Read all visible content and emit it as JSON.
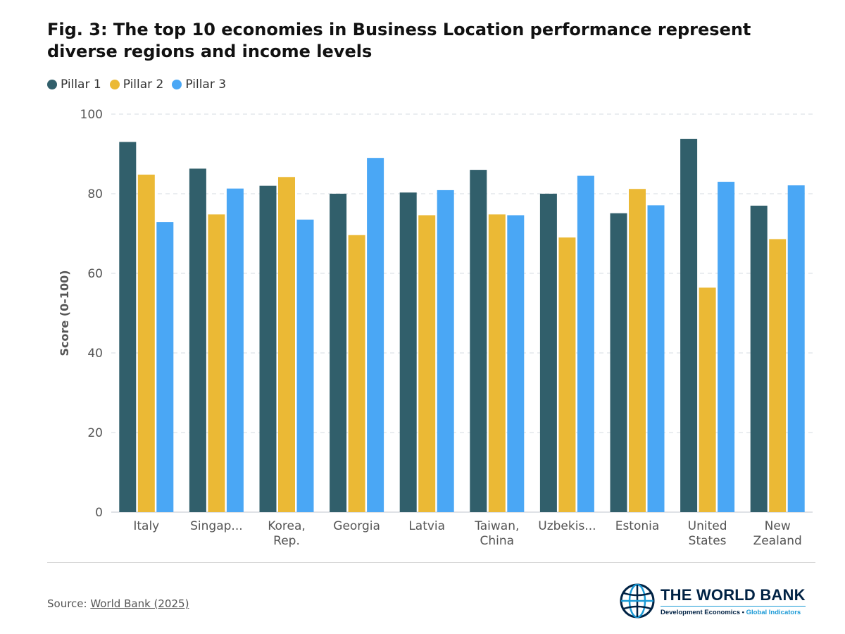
{
  "title": "Fig. 3: The top 10 economies in Business Location performance represent diverse regions and income levels",
  "chart_data": {
    "type": "bar",
    "title": "Fig. 3: The top 10 economies in Business Location performance represent diverse regions and income levels",
    "xlabel": "",
    "ylabel": "Score (0-100)",
    "ylim": [
      0,
      100
    ],
    "yticks": [
      0,
      20,
      40,
      60,
      80,
      100
    ],
    "grid": true,
    "legend_position": "top-left",
    "categories": [
      [
        "Italy"
      ],
      [
        "Singap..."
      ],
      [
        "Korea,",
        "Rep."
      ],
      [
        "Georgia"
      ],
      [
        "Latvia"
      ],
      [
        "Taiwan,",
        "China"
      ],
      [
        "Uzbekis..."
      ],
      [
        "Estonia"
      ],
      [
        "United",
        "States"
      ],
      [
        "New",
        "Zealand"
      ]
    ],
    "series": [
      {
        "name": "Pillar 1",
        "color": "#315f6b",
        "values": [
          93.0,
          86.3,
          82.0,
          80.0,
          80.3,
          86.0,
          80.0,
          75.1,
          93.8,
          77.0
        ]
      },
      {
        "name": "Pillar 2",
        "color": "#ebb935",
        "values": [
          84.8,
          74.8,
          84.2,
          69.6,
          74.6,
          74.8,
          69.0,
          81.2,
          56.4,
          68.6
        ]
      },
      {
        "name": "Pillar 3",
        "color": "#4aa7f5",
        "values": [
          72.9,
          81.3,
          73.5,
          89.0,
          80.9,
          74.6,
          84.5,
          77.1,
          83.0,
          82.1
        ]
      }
    ]
  },
  "footer": {
    "source_prefix": "Source: ",
    "source_link": "World Bank (2025)"
  },
  "logo": {
    "name": "THE WORLD BANK",
    "subtitle_a": "Development Economics • ",
    "subtitle_b": "Global Indicators",
    "icon": "globe-icon"
  }
}
